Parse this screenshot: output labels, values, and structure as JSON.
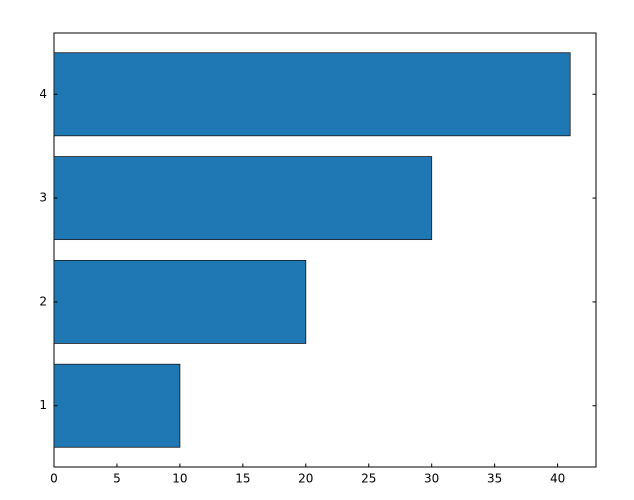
{
  "chart_data": {
    "type": "barh",
    "y": [
      1,
      2,
      3,
      4
    ],
    "values": [
      10,
      20,
      30,
      41
    ],
    "color": "#1f77b4",
    "edgecolor": "#1a1a1a",
    "bar_height": 0.8,
    "xlim": [
      0,
      43.05
    ],
    "xticks": [
      0,
      5,
      10,
      15,
      20,
      25,
      30,
      35,
      40
    ],
    "ylim": [
      0.41,
      4.59
    ],
    "yticks": [
      1,
      2,
      3,
      4
    ]
  }
}
